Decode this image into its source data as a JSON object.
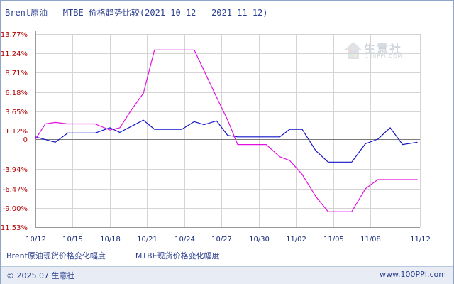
{
  "chart_data": {
    "type": "line",
    "title": "Brent原油 - MTBE 价格趋势比较(2021-10-12 - 2021-11-12)",
    "x": [
      "2021-10-12",
      "2021-10-13",
      "2021-10-14",
      "2021-10-15",
      "2021-10-18",
      "2021-10-19",
      "2021-10-20",
      "2021-10-21",
      "2021-10-22",
      "2021-10-25",
      "2021-10-26",
      "2021-10-27",
      "2021-10-28",
      "2021-10-29",
      "2021-11-01",
      "2021-11-02",
      "2021-11-03",
      "2021-11-04",
      "2021-11-05",
      "2021-11-08",
      "2021-11-09",
      "2021-11-10",
      "2021-11-11",
      "2021-11-12"
    ],
    "x_tick_labels": [
      "10/12",
      "10/15",
      "10/18",
      "10/21",
      "10/24",
      "10/27",
      "10/30",
      "11/02",
      "11/05",
      "11/08",
      "11/12"
    ],
    "y_tick_values": [
      13.77,
      11.24,
      8.71,
      6.18,
      3.65,
      1.12,
      0,
      -3.94,
      -6.47,
      -9.0,
      -11.53
    ],
    "y_tick_labels": [
      "13.77%",
      "11.24%",
      "8.71%",
      "6.18%",
      "3.65%",
      "1.12%",
      "0",
      "-3.94%",
      "-6.47%",
      "-9.00%",
      "-11.53%"
    ],
    "ylim": [
      -11.53,
      13.77
    ],
    "grid": true,
    "legend_position": "bottom-left",
    "xlabel": "",
    "ylabel": "",
    "series": [
      {
        "name": "Brent原油现货价格变化幅度",
        "color": "#1515c8",
        "values": [
          [
            0.0,
            0.3
          ],
          [
            1.6,
            -0.4
          ],
          [
            2.6,
            0.8
          ],
          [
            4.8,
            0.8
          ],
          [
            6.0,
            1.5
          ],
          [
            6.8,
            0.9
          ],
          [
            8.7,
            2.5
          ],
          [
            9.6,
            1.3
          ],
          [
            11.8,
            1.3
          ],
          [
            12.8,
            2.3
          ],
          [
            13.6,
            1.9
          ],
          [
            14.6,
            2.4
          ],
          [
            15.5,
            0.5
          ],
          [
            16.3,
            0.3
          ],
          [
            19.7,
            0.3
          ],
          [
            20.5,
            1.3
          ],
          [
            21.5,
            1.3
          ],
          [
            22.6,
            -1.5
          ],
          [
            23.6,
            -3.0
          ],
          [
            25.5,
            -3.0
          ],
          [
            26.6,
            -0.6
          ],
          [
            27.6,
            0.0
          ],
          [
            28.6,
            1.5
          ],
          [
            29.6,
            -0.7
          ],
          [
            30.8,
            -0.4
          ]
        ]
      },
      {
        "name": "MTBE现货价格变化幅度",
        "color": "#e011e0",
        "values": [
          [
            0.0,
            0.0
          ],
          [
            0.8,
            2.0
          ],
          [
            1.6,
            2.2
          ],
          [
            2.6,
            2.0
          ],
          [
            4.8,
            2.0
          ],
          [
            6.0,
            1.2
          ],
          [
            6.8,
            1.5
          ],
          [
            7.8,
            4.0
          ],
          [
            8.7,
            6.0
          ],
          [
            9.6,
            11.7
          ],
          [
            12.8,
            11.7
          ],
          [
            14.6,
            5.5
          ],
          [
            15.5,
            2.5
          ],
          [
            16.3,
            -0.7
          ],
          [
            18.6,
            -0.7
          ],
          [
            19.7,
            -2.3
          ],
          [
            20.5,
            -2.8
          ],
          [
            21.5,
            -4.6
          ],
          [
            22.6,
            -7.5
          ],
          [
            23.6,
            -9.5
          ],
          [
            25.5,
            -9.5
          ],
          [
            26.6,
            -6.5
          ],
          [
            27.6,
            -5.3
          ],
          [
            30.8,
            -5.3
          ]
        ]
      }
    ]
  },
  "legend": {
    "series1_label": "Brent原油现货价格变化幅度",
    "series2_label": "MTBE现货价格变化幅度"
  },
  "footer": {
    "copyright": "© 2025.07 生意社",
    "url": "www.100PPI.com"
  },
  "watermark": {
    "name": "生意社",
    "sub": "100PPI.COM"
  },
  "colors": {
    "grid": "#d4d4d4",
    "axis": "#9a9a9a",
    "frame": "#8fa6c8"
  }
}
